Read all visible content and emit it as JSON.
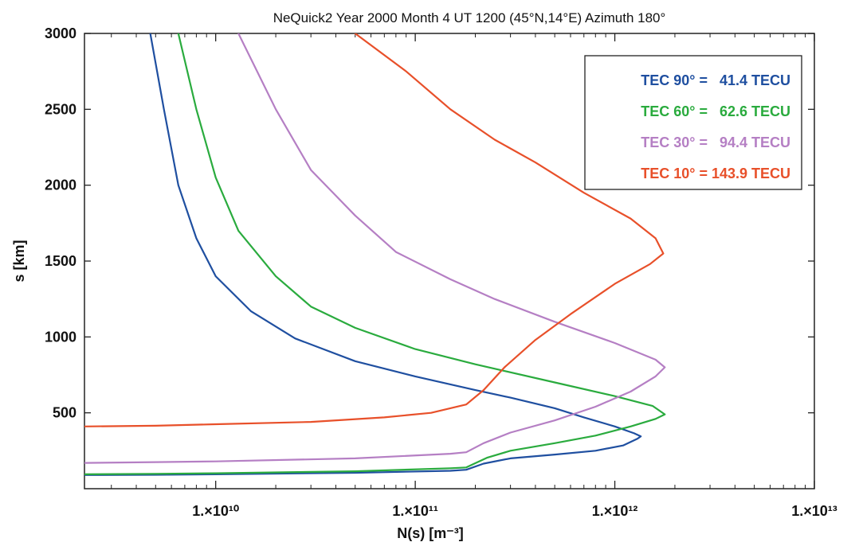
{
  "chart_data": {
    "type": "line",
    "title": "NeQuick2   Year 2000  Month  4  UT  1200   (45°N,14°E)   Azimuth 180°",
    "xlabel": "N(s) [m⁻³]",
    "ylabel": "s [km]",
    "x_scale": "log",
    "xlim": [
      2200000000.0,
      10000000000000.0
    ],
    "ylim": [
      0,
      3000
    ],
    "x_ticks": [
      {
        "value": 10000000000.0,
        "label": "1.×10¹⁰"
      },
      {
        "value": 100000000000.0,
        "label": "1.×10¹¹"
      },
      {
        "value": 1000000000000.0,
        "label": "1.×10¹²"
      },
      {
        "value": 10000000000000.0,
        "label": "1.×10¹³"
      }
    ],
    "y_ticks": [
      500,
      1000,
      1500,
      2000,
      2500,
      3000
    ],
    "grid": false,
    "legend_position": "top-right",
    "series": [
      {
        "name": "TEC 90° =   41.4 TECU",
        "color": "#1f4fa0",
        "points": [
          [
            2200000000.0,
            90
          ],
          [
            5000000000.0,
            92
          ],
          [
            10000000000.0,
            95
          ],
          [
            50000000000.0,
            105
          ],
          [
            150000000000.0,
            118
          ],
          [
            180000000000.0,
            125
          ],
          [
            220000000000.0,
            165
          ],
          [
            300000000000.0,
            200
          ],
          [
            500000000000.0,
            225
          ],
          [
            800000000000.0,
            250
          ],
          [
            1100000000000.0,
            285
          ],
          [
            1300000000000.0,
            330
          ],
          [
            1350000000000.0,
            345
          ],
          [
            1250000000000.0,
            365
          ],
          [
            1000000000000.0,
            410
          ],
          [
            700000000000.0,
            470
          ],
          [
            500000000000.0,
            530
          ],
          [
            300000000000.0,
            600
          ],
          [
            200000000000.0,
            650
          ],
          [
            100000000000.0,
            740
          ],
          [
            50000000000.0,
            840
          ],
          [
            25000000000.0,
            990
          ],
          [
            15000000000.0,
            1170
          ],
          [
            10000000000.0,
            1400
          ],
          [
            8000000000.0,
            1650
          ],
          [
            6500000000.0,
            2000
          ],
          [
            5500000000.0,
            2500
          ],
          [
            4700000000.0,
            3000
          ]
        ]
      },
      {
        "name": "TEC 60° =   62.6 TECU",
        "color": "#2aab3e",
        "points": [
          [
            2200000000.0,
            95
          ],
          [
            5000000000.0,
            98
          ],
          [
            10000000000.0,
            102
          ],
          [
            50000000000.0,
            115
          ],
          [
            150000000000.0,
            135
          ],
          [
            180000000000.0,
            140
          ],
          [
            230000000000.0,
            205
          ],
          [
            300000000000.0,
            250
          ],
          [
            500000000000.0,
            300
          ],
          [
            800000000000.0,
            350
          ],
          [
            1200000000000.0,
            410
          ],
          [
            1600000000000.0,
            460
          ],
          [
            1780000000000.0,
            490
          ],
          [
            1550000000000.0,
            545
          ],
          [
            1000000000000.0,
            610
          ],
          [
            500000000000.0,
            700
          ],
          [
            200000000000.0,
            820
          ],
          [
            100000000000.0,
            920
          ],
          [
            50000000000.0,
            1060
          ],
          [
            30000000000.0,
            1200
          ],
          [
            20000000000.0,
            1400
          ],
          [
            13000000000.0,
            1700
          ],
          [
            10000000000.0,
            2050
          ],
          [
            8000000000.0,
            2500
          ],
          [
            6500000000.0,
            3000
          ]
        ]
      },
      {
        "name": "TEC 30° =   94.4 TECU",
        "color": "#b57fc4",
        "points": [
          [
            2200000000.0,
            170
          ],
          [
            5000000000.0,
            175
          ],
          [
            10000000000.0,
            180
          ],
          [
            50000000000.0,
            200
          ],
          [
            150000000000.0,
            230
          ],
          [
            180000000000.0,
            240
          ],
          [
            220000000000.0,
            300
          ],
          [
            300000000000.0,
            370
          ],
          [
            500000000000.0,
            450
          ],
          [
            800000000000.0,
            540
          ],
          [
            1200000000000.0,
            640
          ],
          [
            1600000000000.0,
            740
          ],
          [
            1780000000000.0,
            800
          ],
          [
            1600000000000.0,
            850
          ],
          [
            1000000000000.0,
            960
          ],
          [
            500000000000.0,
            1100
          ],
          [
            250000000000.0,
            1250
          ],
          [
            150000000000.0,
            1380
          ],
          [
            80000000000.0,
            1560
          ],
          [
            50000000000.0,
            1800
          ],
          [
            30000000000.0,
            2100
          ],
          [
            20000000000.0,
            2500
          ],
          [
            13000000000.0,
            3000
          ]
        ]
      },
      {
        "name": "TEC 10° = 143.9 TECU",
        "color": "#e8502a",
        "points": [
          [
            2200000000.0,
            410
          ],
          [
            5000000000.0,
            415
          ],
          [
            10000000000.0,
            425
          ],
          [
            30000000000.0,
            440
          ],
          [
            70000000000.0,
            470
          ],
          [
            120000000000.0,
            500
          ],
          [
            180000000000.0,
            555
          ],
          [
            220000000000.0,
            650
          ],
          [
            280000000000.0,
            800
          ],
          [
            400000000000.0,
            980
          ],
          [
            600000000000.0,
            1150
          ],
          [
            1000000000000.0,
            1350
          ],
          [
            1500000000000.0,
            1480
          ],
          [
            1750000000000.0,
            1550
          ],
          [
            1600000000000.0,
            1650
          ],
          [
            1200000000000.0,
            1780
          ],
          [
            700000000000.0,
            1950
          ],
          [
            400000000000.0,
            2150
          ],
          [
            250000000000.0,
            2300
          ],
          [
            150000000000.0,
            2500
          ],
          [
            90000000000.0,
            2750
          ],
          [
            50000000000.0,
            3000
          ]
        ]
      }
    ]
  }
}
